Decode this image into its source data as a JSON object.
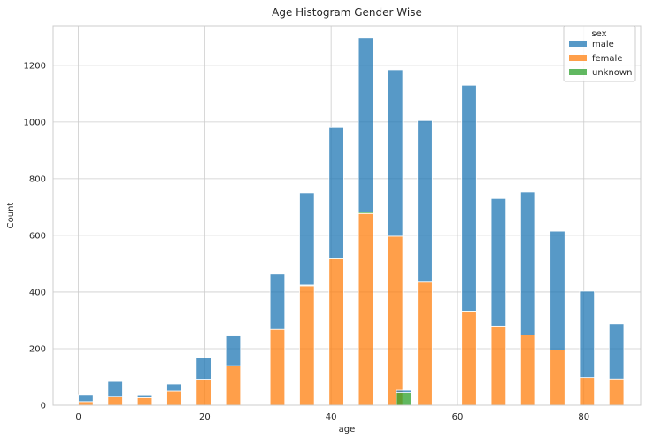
{
  "chart_data": {
    "type": "bar",
    "title": "Age Histogram Gender Wise",
    "xlabel": "age",
    "ylabel": "Count",
    "xlim": [
      -4,
      89
    ],
    "ylim": [
      0,
      1340
    ],
    "xticks": [
      0,
      20,
      40,
      60,
      80
    ],
    "yticks": [
      0,
      200,
      400,
      600,
      800,
      1000,
      1200
    ],
    "grid": true,
    "stacked": true,
    "legend": {
      "title": "sex",
      "placement": "top-right"
    },
    "bin_width": 2.33,
    "x": [
      1.17,
      5.83,
      10.5,
      15.17,
      19.83,
      24.5,
      31.5,
      36.17,
      40.83,
      45.5,
      50.17,
      54.83,
      61.83,
      66.5,
      71.17,
      75.83,
      80.5,
      85.17
    ],
    "series": [
      {
        "name": "male",
        "color": "#1f77b4",
        "values": [
          25,
          52,
          10,
          25,
          75,
          105,
          195,
          325,
          460,
          615,
          587,
          570,
          797,
          450,
          505,
          420,
          305,
          195
        ]
      },
      {
        "name": "female",
        "color": "#ff7f0e",
        "values": [
          13,
          32,
          27,
          50,
          92,
          140,
          268,
          422,
          517,
          677,
          597,
          435,
          330,
          280,
          248,
          195,
          98,
          93
        ]
      },
      {
        "name": "unknown",
        "color": "#2ca02c",
        "values": [
          0,
          0,
          0,
          0,
          0,
          0,
          0,
          3,
          3,
          5,
          0,
          0,
          3,
          0,
          0,
          0,
          0,
          0
        ]
      }
    ],
    "unknown_extra": {
      "x": 51.5,
      "female": 0,
      "unknown": 45,
      "male": 8
    }
  }
}
